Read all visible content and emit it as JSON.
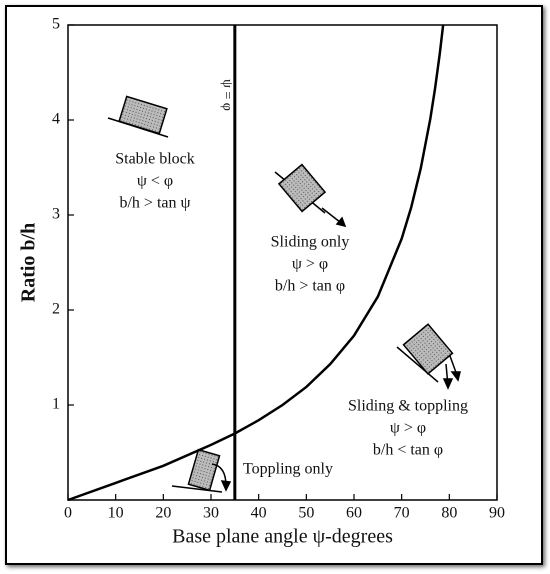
{
  "chart_data": {
    "type": "line",
    "xlabel": "Base plane angle ψ-degrees",
    "ylabel": "Ratio b/h",
    "x": [
      0,
      10,
      20,
      30,
      35,
      40,
      45,
      50,
      55,
      60,
      65,
      70,
      72,
      74,
      76,
      77,
      78,
      78.7
    ],
    "values": [
      0,
      0.18,
      0.36,
      0.58,
      0.7,
      0.84,
      1,
      1.19,
      1.43,
      1.73,
      2.14,
      2.75,
      3.08,
      3.49,
      4.01,
      4.33,
      4.7,
      5
    ],
    "color": "#000000",
    "xlim": [
      0,
      90
    ],
    "ylim": [
      0,
      5
    ],
    "xticks": [
      0,
      10,
      20,
      30,
      40,
      50,
      60,
      70,
      80,
      90
    ],
    "yticks": [
      1,
      2,
      3,
      4,
      5
    ],
    "vline": {
      "x": 35,
      "label": "ψ = φ"
    },
    "annotations": [
      [
        "Stable block",
        "ψ < φ",
        "b/h > tan ψ"
      ],
      [
        "Sliding only",
        "ψ > φ",
        "b/h > tan φ"
      ],
      [
        "Sliding & toppling",
        "ψ > φ",
        "b/h < tan φ"
      ],
      [
        "Toppling only"
      ]
    ]
  }
}
